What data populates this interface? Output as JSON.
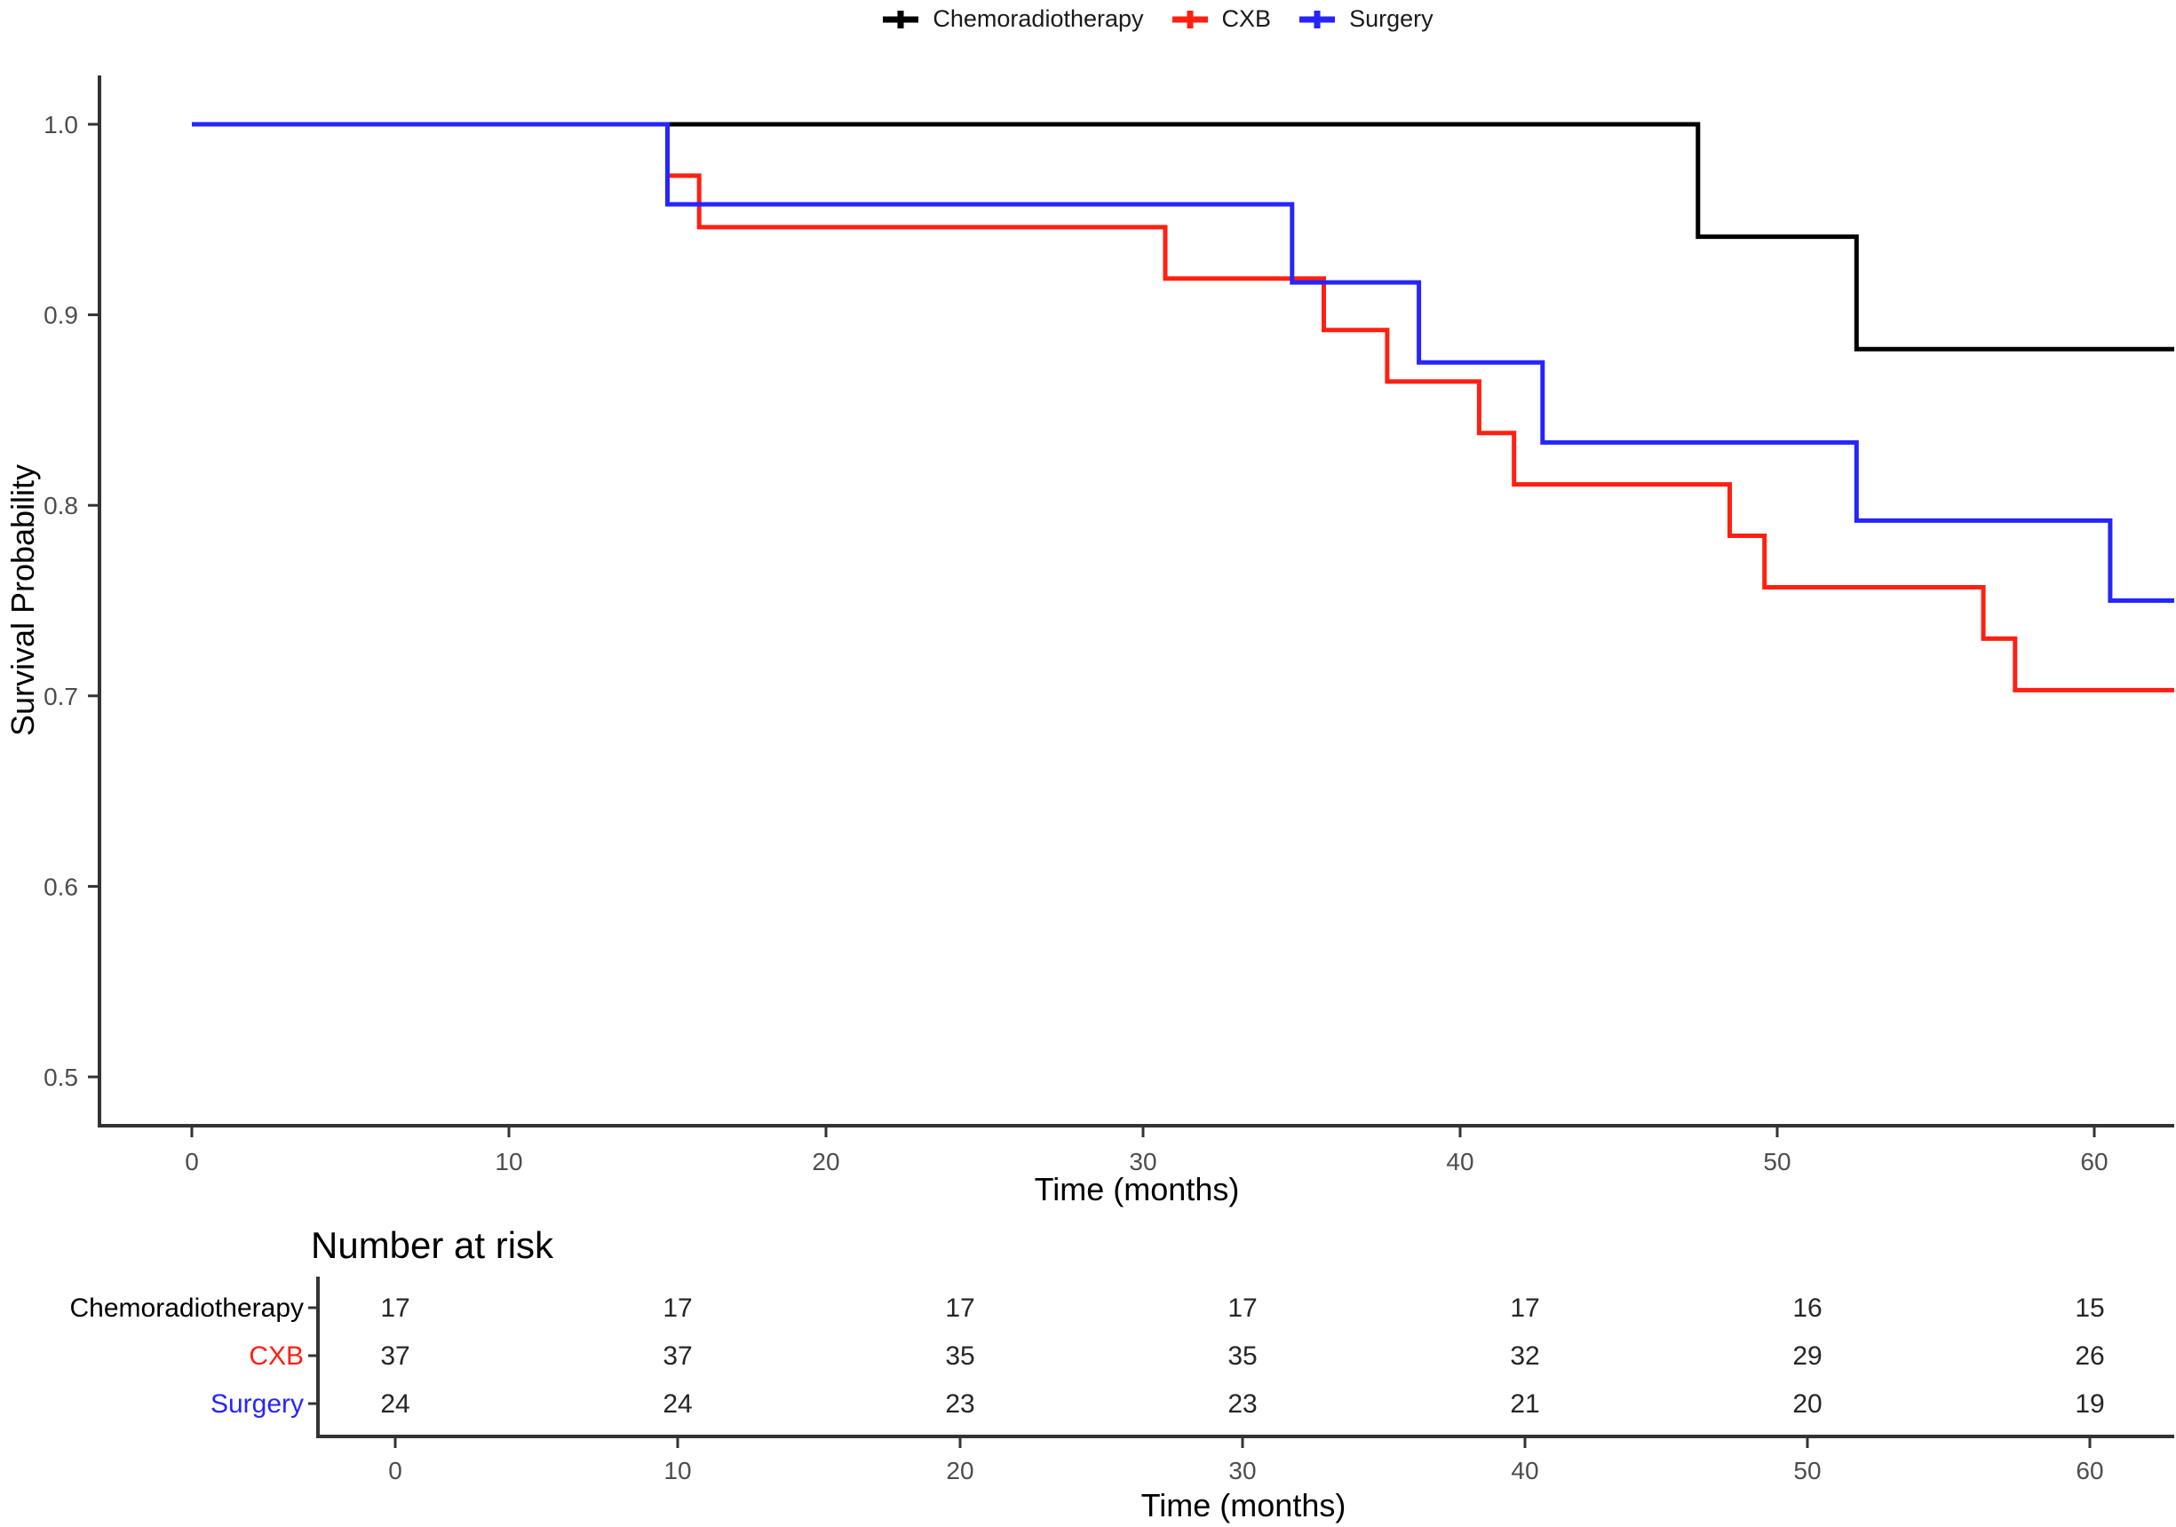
{
  "figure": {
    "background": "#ffffff"
  },
  "legend": {
    "items": [
      {
        "label": "Chemoradiotherapy",
        "color": "#000000",
        "marker": "plus"
      },
      {
        "label": "CXB",
        "color": "#ff2012",
        "marker": "plus"
      },
      {
        "label": "Surgery",
        "color": "#2626fa",
        "marker": "plus"
      }
    ]
  },
  "chart_data": {
    "type": "line",
    "subtype": "kaplan-meier-step",
    "title": "",
    "xlabel": "Time (months)",
    "ylabel": "Survival Probability",
    "x_ticks": [
      0,
      10,
      20,
      30,
      40,
      50,
      60
    ],
    "y_ticks": [
      0.5,
      0.6,
      0.7,
      0.8,
      0.9,
      1.0
    ],
    "xlim": [
      -3,
      63
    ],
    "ylim": [
      0.474,
      1.026
    ],
    "grid": "off",
    "legend_position": "top",
    "axis_color": "#333333",
    "tick_label_color": "#4d4d4d",
    "series": [
      {
        "name": "Chemoradiotherapy",
        "color": "#000000",
        "steps": [
          [
            0,
            1.0
          ],
          [
            47.5,
            0.941
          ],
          [
            52.5,
            0.882
          ]
        ]
      },
      {
        "name": "CXB",
        "color": "#ff2012",
        "steps": [
          [
            0,
            1.0
          ],
          [
            15,
            0.973
          ],
          [
            16,
            0.946
          ],
          [
            30.7,
            0.919
          ],
          [
            35.7,
            0.892
          ],
          [
            37.7,
            0.865
          ],
          [
            40.6,
            0.838
          ],
          [
            41.7,
            0.811
          ],
          [
            48.5,
            0.784
          ],
          [
            49.6,
            0.757
          ],
          [
            56.5,
            0.73
          ],
          [
            57.5,
            0.703
          ]
        ]
      },
      {
        "name": "Surgery",
        "color": "#2626fa",
        "steps": [
          [
            0,
            1.0
          ],
          [
            15,
            0.958
          ],
          [
            34.7,
            0.917
          ],
          [
            38.7,
            0.875
          ],
          [
            42.6,
            0.833
          ],
          [
            52.5,
            0.792
          ],
          [
            60.5,
            0.75
          ]
        ]
      }
    ]
  },
  "risk_table": {
    "title": "Number at risk",
    "xlabel": "Time (months)",
    "times": [
      0,
      10,
      20,
      30,
      40,
      50,
      60
    ],
    "rows": [
      {
        "label": "Chemoradiotherapy",
        "color": "#000000",
        "values": [
          17,
          17,
          17,
          17,
          17,
          16,
          15
        ]
      },
      {
        "label": "CXB",
        "color": "#ff2012",
        "values": [
          37,
          37,
          35,
          35,
          32,
          29,
          26
        ]
      },
      {
        "label": "Surgery",
        "color": "#2626fa",
        "values": [
          24,
          24,
          23,
          23,
          21,
          20,
          19
        ]
      }
    ]
  }
}
